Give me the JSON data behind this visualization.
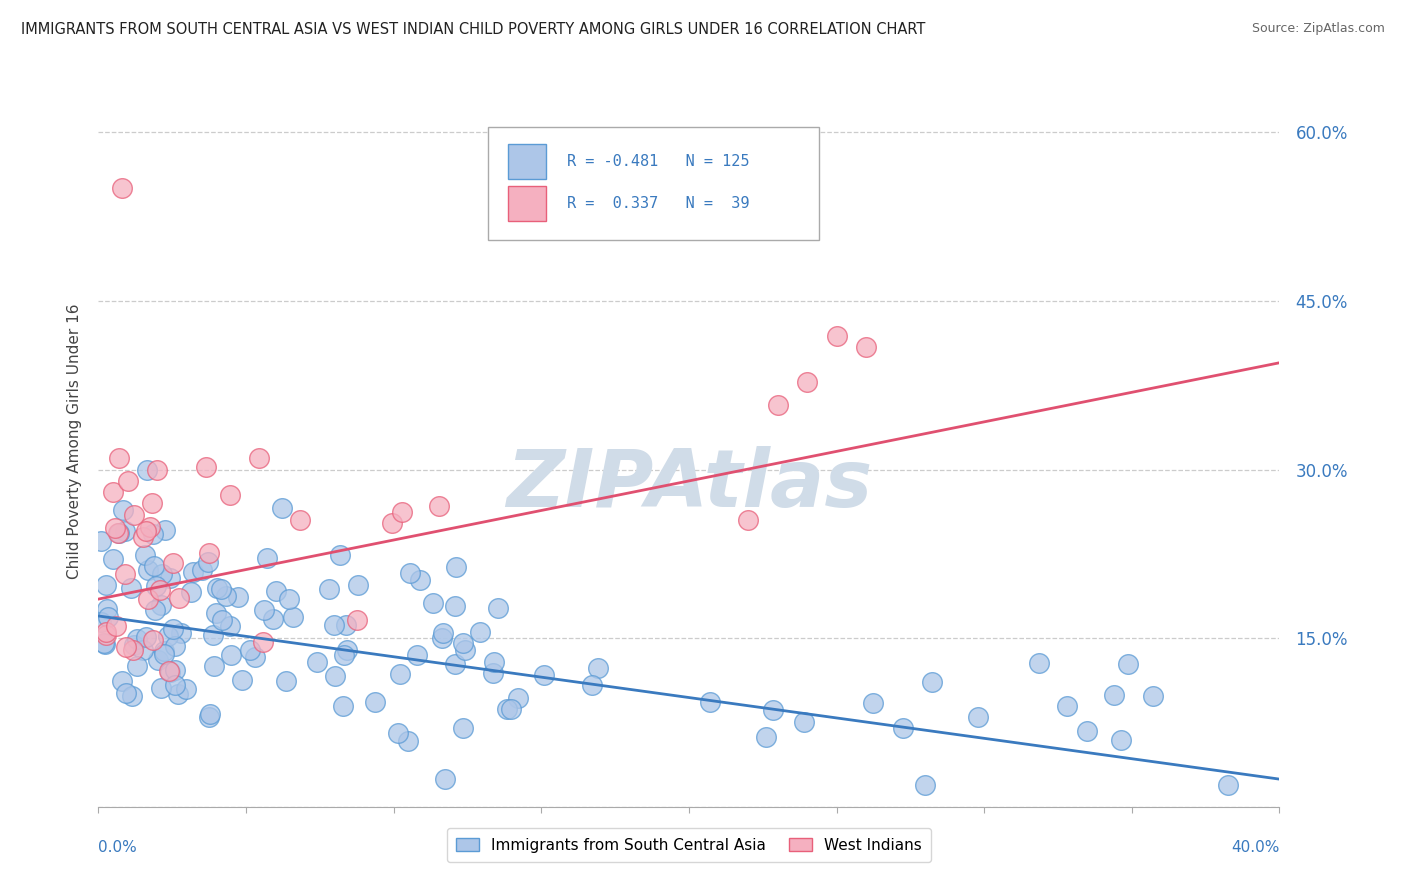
{
  "title": "IMMIGRANTS FROM SOUTH CENTRAL ASIA VS WEST INDIAN CHILD POVERTY AMONG GIRLS UNDER 16 CORRELATION CHART",
  "source": "Source: ZipAtlas.com",
  "ylabel": "Child Poverty Among Girls Under 16",
  "ytick_vals": [
    0.0,
    0.15,
    0.3,
    0.45,
    0.6
  ],
  "ytick_labels": [
    "",
    "15.0%",
    "30.0%",
    "45.0%",
    "60.0%"
  ],
  "xrange": [
    0.0,
    0.4
  ],
  "yrange": [
    0.0,
    0.65
  ],
  "blue_color": "#adc6e8",
  "pink_color": "#f5b0c0",
  "blue_edge_color": "#5b9bd5",
  "pink_edge_color": "#e8607a",
  "blue_line_color": "#3a7abf",
  "pink_line_color": "#e05070",
  "legend_text_color": "#3a7abf",
  "watermark": "ZIPAtlas",
  "watermark_color": "#d0dce8",
  "background_color": "#ffffff",
  "blue_legend_label": "Immigrants from South Central Asia",
  "pink_legend_label": "West Indians",
  "blue_R": "-0.481",
  "blue_N": "125",
  "pink_R": "0.337",
  "pink_N": "39"
}
